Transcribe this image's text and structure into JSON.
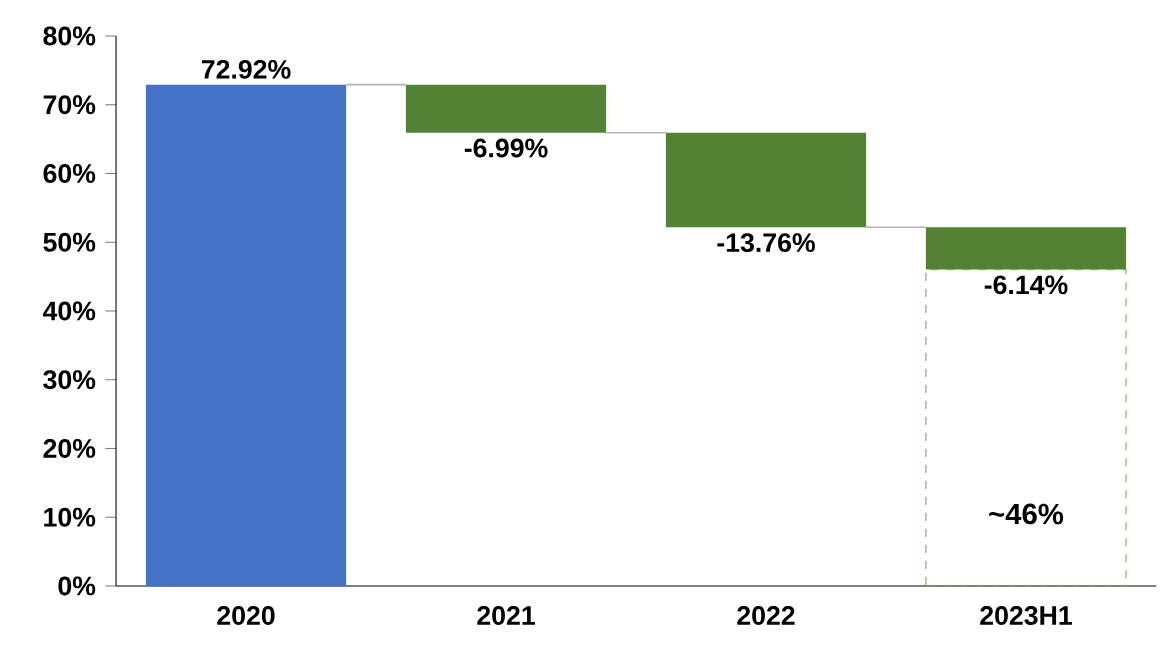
{
  "chart_data": {
    "type": "bar",
    "categories": [
      "2020",
      "2021",
      "2022",
      "2023H1"
    ],
    "series": [
      {
        "values": [
          72.92,
          -6.99,
          -13.76,
          -6.14
        ],
        "base": [
          0,
          72.92,
          65.93,
          52.17
        ],
        "colors": [
          "#4472c4",
          "#548235",
          "#548235",
          "#548235"
        ],
        "value_labels": [
          "72.92%",
          "-6.99%",
          "-13.76%",
          "-6.14%"
        ]
      },
      {
        "values": [
          null,
          null,
          null,
          46
        ],
        "color": "#70ad47",
        "line_style": "dashed"
      }
    ],
    "annotations": [
      "~46%"
    ],
    "ylim": [
      0,
      80
    ],
    "yticks": [
      {
        "value": 0,
        "label": "0%"
      },
      {
        "value": 10,
        "label": "10%"
      },
      {
        "value": 20,
        "label": "20%"
      },
      {
        "value": 30,
        "label": "30%"
      },
      {
        "value": 40,
        "label": "40%"
      },
      {
        "value": 50,
        "label": "50%"
      },
      {
        "value": 60,
        "label": "60%"
      },
      {
        "value": 70,
        "label": "70%"
      },
      {
        "value": 80,
        "label": "80%"
      }
    ],
    "grid": false
  }
}
